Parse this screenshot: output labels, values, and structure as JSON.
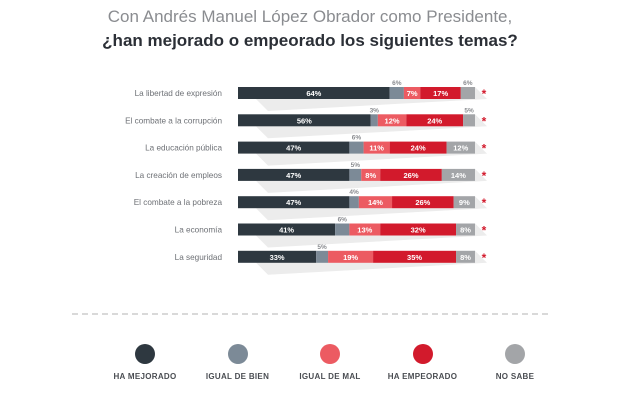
{
  "header": {
    "title_line1": "Con Andrés Manuel López Obrador como Presidente,",
    "title_line2": "¿han mejorado o empeorado los siguientes temas?"
  },
  "chart_data": {
    "type": "bar",
    "orientation": "horizontal",
    "stacked": true,
    "categories": [
      "La libertad de expresión",
      "El combate a la corrupción",
      "La educación pública",
      "La creación de empleos",
      "El combate a la pobreza",
      "La economía",
      "La seguridad"
    ],
    "series": [
      {
        "name": "HA MEJORADO",
        "color": "#2e3840",
        "values": [
          64,
          56,
          47,
          47,
          47,
          41,
          33
        ]
      },
      {
        "name": "IGUAL DE BIEN",
        "color": "#7c8a97",
        "values": [
          6,
          3,
          6,
          5,
          4,
          6,
          5
        ]
      },
      {
        "name": "IGUAL DE MAL",
        "color": "#ec5b62",
        "values": [
          7,
          12,
          11,
          8,
          14,
          13,
          19
        ]
      },
      {
        "name": "HA EMPEORADO",
        "color": "#d21a2c",
        "values": [
          17,
          24,
          24,
          26,
          26,
          32,
          35
        ]
      },
      {
        "name": "NO SABE",
        "color": "#a3a5a8",
        "values": [
          6,
          5,
          12,
          14,
          9,
          8,
          8
        ]
      }
    ],
    "value_labels": [
      [
        "64%",
        "6%",
        "7%",
        "17%",
        "6%"
      ],
      [
        "56%",
        "3%",
        "12%",
        "24%",
        "5%"
      ],
      [
        "47%",
        "6%",
        "11%",
        "24%",
        "12%"
      ],
      [
        "47%",
        "5%",
        "8%",
        "26%",
        "14%"
      ],
      [
        "47%",
        "4%",
        "14%",
        "26%",
        "9%"
      ],
      [
        "41%",
        "6%",
        "13%",
        "32%",
        "8%"
      ],
      [
        "33%",
        "5%",
        "19%",
        "35%",
        "8%"
      ]
    ],
    "row_markers": [
      "*",
      "*",
      "*",
      "*",
      "*",
      "*",
      "*"
    ],
    "marker_color": "#d21a2c",
    "unit": "%",
    "xlim": [
      0,
      100
    ],
    "grid": false,
    "legend_position": "bottom"
  }
}
